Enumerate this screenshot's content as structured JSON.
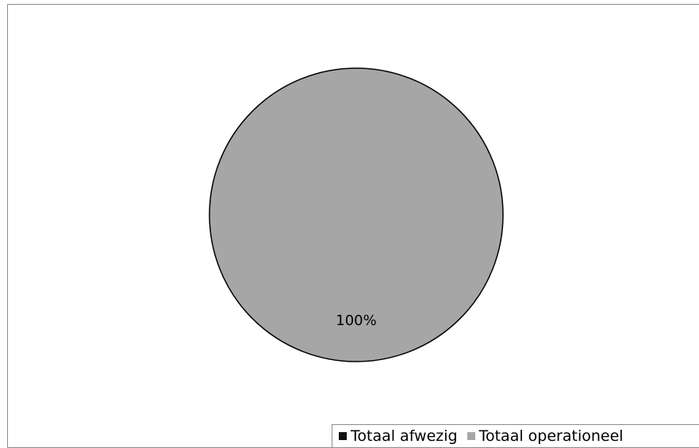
{
  "chart_data": {
    "type": "pie",
    "title": "",
    "categories": [
      "Totaal afwezig",
      "Totaal operationeel"
    ],
    "values": [
      0,
      100
    ],
    "data_labels": [
      "",
      "100%"
    ],
    "colors": [
      "#111111",
      "#a6a6a6"
    ],
    "legend_position": "bottom-right"
  }
}
